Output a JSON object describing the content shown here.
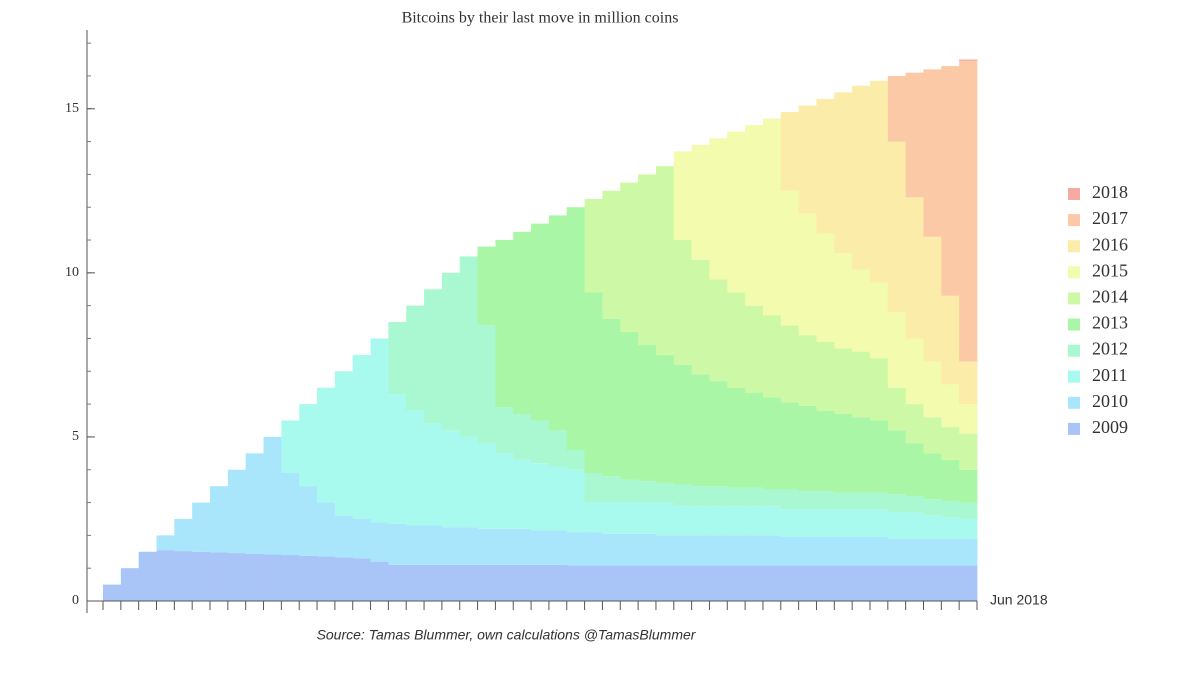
{
  "chart_data": {
    "type": "stacked-step-area",
    "title": "Bitcoins by their last move in million coins",
    "source": "Source: Tamas Blummer, own calculations @TamasBlummer",
    "categories": [
      null,
      null,
      null,
      null,
      null,
      null,
      null,
      null,
      null,
      null,
      null,
      null,
      null,
      null,
      null,
      null,
      null,
      null,
      null,
      null,
      null,
      null,
      null,
      null,
      null,
      null,
      null,
      null,
      null,
      null,
      null,
      null,
      null,
      null,
      null,
      null,
      null,
      null,
      null,
      null,
      null,
      null,
      null,
      null,
      null,
      null,
      null,
      null,
      "Jun 2018"
    ],
    "ylim": [
      0,
      17.4
    ],
    "yticks": [
      0,
      5,
      10,
      15
    ],
    "legend": "right",
    "series": [
      {
        "name": "2009",
        "color": "#a9c4f7",
        "values": [
          0.5,
          1.0,
          1.5,
          1.55,
          1.52,
          1.5,
          1.48,
          1.46,
          1.44,
          1.42,
          1.4,
          1.38,
          1.36,
          1.33,
          1.3,
          1.2,
          1.1,
          1.1,
          1.1,
          1.1,
          1.1,
          1.1,
          1.1,
          1.1,
          1.1,
          1.1,
          1.08,
          1.08,
          1.08,
          1.08,
          1.08,
          1.08,
          1.08,
          1.08,
          1.08,
          1.08,
          1.08,
          1.08,
          1.08,
          1.08,
          1.08,
          1.08,
          1.08,
          1.08,
          1.08,
          1.08,
          1.08,
          1.08,
          1.08
        ]
      },
      {
        "name": "2010",
        "color": "#aae6fb",
        "values": [
          0,
          0,
          0,
          0.45,
          0.98,
          1.5,
          2.02,
          2.54,
          3.06,
          3.58,
          2.5,
          2.12,
          1.64,
          1.27,
          1.2,
          1.2,
          1.25,
          1.2,
          1.2,
          1.15,
          1.15,
          1.1,
          1.1,
          1.1,
          1.05,
          1.05,
          1.02,
          1.02,
          0.97,
          0.97,
          0.97,
          0.92,
          0.92,
          0.92,
          0.92,
          0.92,
          0.92,
          0.92,
          0.87,
          0.87,
          0.87,
          0.87,
          0.87,
          0.87,
          0.82,
          0.82,
          0.82,
          0.82,
          0.82
        ]
      },
      {
        "name": "2011",
        "color": "#a9faee",
        "values": [
          0,
          0,
          0,
          0,
          0,
          0,
          0,
          0,
          0,
          0,
          1.6,
          2.5,
          3.5,
          4.4,
          5.0,
          5.6,
          3.95,
          3.5,
          3.1,
          2.95,
          2.75,
          2.6,
          2.3,
          2.1,
          2.05,
          1.95,
          1.9,
          0.9,
          0.95,
          0.95,
          0.95,
          1.0,
          0.9,
          0.9,
          0.9,
          0.9,
          0.9,
          0.9,
          0.85,
          0.85,
          0.85,
          0.85,
          0.85,
          0.85,
          0.8,
          0.8,
          0.7,
          0.65,
          0.6
        ]
      },
      {
        "name": "2012",
        "color": "#a9f8d2",
        "values": [
          0,
          0,
          0,
          0,
          0,
          0,
          0,
          0,
          0,
          0,
          0,
          0,
          0,
          0,
          0,
          0,
          2.2,
          3.2,
          4.1,
          4.8,
          5.5,
          3.6,
          1.4,
          1.4,
          1.3,
          1.1,
          0.6,
          0.9,
          0.8,
          0.7,
          0.65,
          0.6,
          0.65,
          0.6,
          0.6,
          0.55,
          0.55,
          0.5,
          0.6,
          0.55,
          0.55,
          0.5,
          0.5,
          0.5,
          0.55,
          0.5,
          0.5,
          0.5,
          0.5
        ]
      },
      {
        "name": "2013",
        "color": "#a8f6a6",
        "values": [
          0,
          0,
          0,
          0,
          0,
          0,
          0,
          0,
          0,
          0,
          0,
          0,
          0,
          0,
          0,
          0,
          0,
          0,
          0,
          0,
          0,
          2.4,
          5.1,
          5.55,
          6.0,
          6.55,
          7.4,
          5.5,
          4.8,
          4.5,
          4.15,
          3.9,
          3.65,
          3.4,
          3.2,
          3.05,
          2.9,
          2.8,
          2.65,
          2.6,
          2.45,
          2.4,
          2.3,
          2.2,
          1.95,
          1.6,
          1.4,
          1.25,
          1.0
        ]
      },
      {
        "name": "2014",
        "color": "#cdf9a6",
        "values": [
          0,
          0,
          0,
          0,
          0,
          0,
          0,
          0,
          0,
          0,
          0,
          0,
          0,
          0,
          0,
          0,
          0,
          0,
          0,
          0,
          0,
          0,
          0,
          0,
          0,
          0,
          0,
          2.85,
          3.9,
          4.55,
          5.2,
          5.75,
          3.8,
          3.5,
          3.1,
          2.9,
          2.65,
          2.5,
          2.35,
          2.15,
          2.1,
          2.0,
          2.0,
          1.9,
          1.3,
          1.2,
          1.1,
          1.0,
          1.1
        ]
      },
      {
        "name": "2015",
        "color": "#f2fbae",
        "values": [
          0,
          0,
          0,
          0,
          0,
          0,
          0,
          0,
          0,
          0,
          0,
          0,
          0,
          0,
          0,
          0,
          0,
          0,
          0,
          0,
          0,
          0,
          0,
          0,
          0,
          0,
          0,
          0,
          0,
          0,
          0,
          0,
          2.7,
          3.5,
          4.3,
          4.9,
          5.5,
          6.0,
          4.1,
          3.7,
          3.3,
          2.9,
          2.5,
          2.3,
          2.3,
          2.0,
          1.7,
          1.3,
          0.9
        ]
      },
      {
        "name": "2016",
        "color": "#fcecaa",
        "values": [
          0,
          0,
          0,
          0,
          0,
          0,
          0,
          0,
          0,
          0,
          0,
          0,
          0,
          0,
          0,
          0,
          0,
          0,
          0,
          0,
          0,
          0,
          0,
          0,
          0,
          0,
          0,
          0,
          0,
          0,
          0,
          0,
          0,
          0,
          0,
          0,
          0,
          0,
          2.4,
          3.3,
          4.1,
          4.9,
          5.6,
          6.15,
          5.2,
          4.3,
          3.8,
          2.7,
          1.3
        ]
      },
      {
        "name": "2017",
        "color": "#fcc9a6",
        "values": [
          0,
          0,
          0,
          0,
          0,
          0,
          0,
          0,
          0,
          0,
          0,
          0,
          0,
          0,
          0,
          0,
          0,
          0,
          0,
          0,
          0,
          0,
          0,
          0,
          0,
          0,
          0,
          0,
          0,
          0,
          0,
          0,
          0,
          0,
          0,
          0,
          0,
          0,
          0,
          0,
          0,
          0,
          0,
          0,
          2.0,
          3.8,
          5.1,
          7.0,
          9.15
        ]
      },
      {
        "name": "2018",
        "color": "#f6aba2",
        "values": [
          0,
          0,
          0,
          0,
          0,
          0,
          0,
          0,
          0,
          0,
          0,
          0,
          0,
          0,
          0,
          0,
          0,
          0,
          0,
          0,
          0,
          0,
          0,
          0,
          0,
          0,
          0,
          0,
          0,
          0,
          0,
          0,
          0,
          0,
          0,
          0,
          0,
          0,
          0,
          0,
          0,
          0,
          0,
          0,
          0,
          0,
          0,
          0,
          0.05
        ]
      }
    ]
  }
}
